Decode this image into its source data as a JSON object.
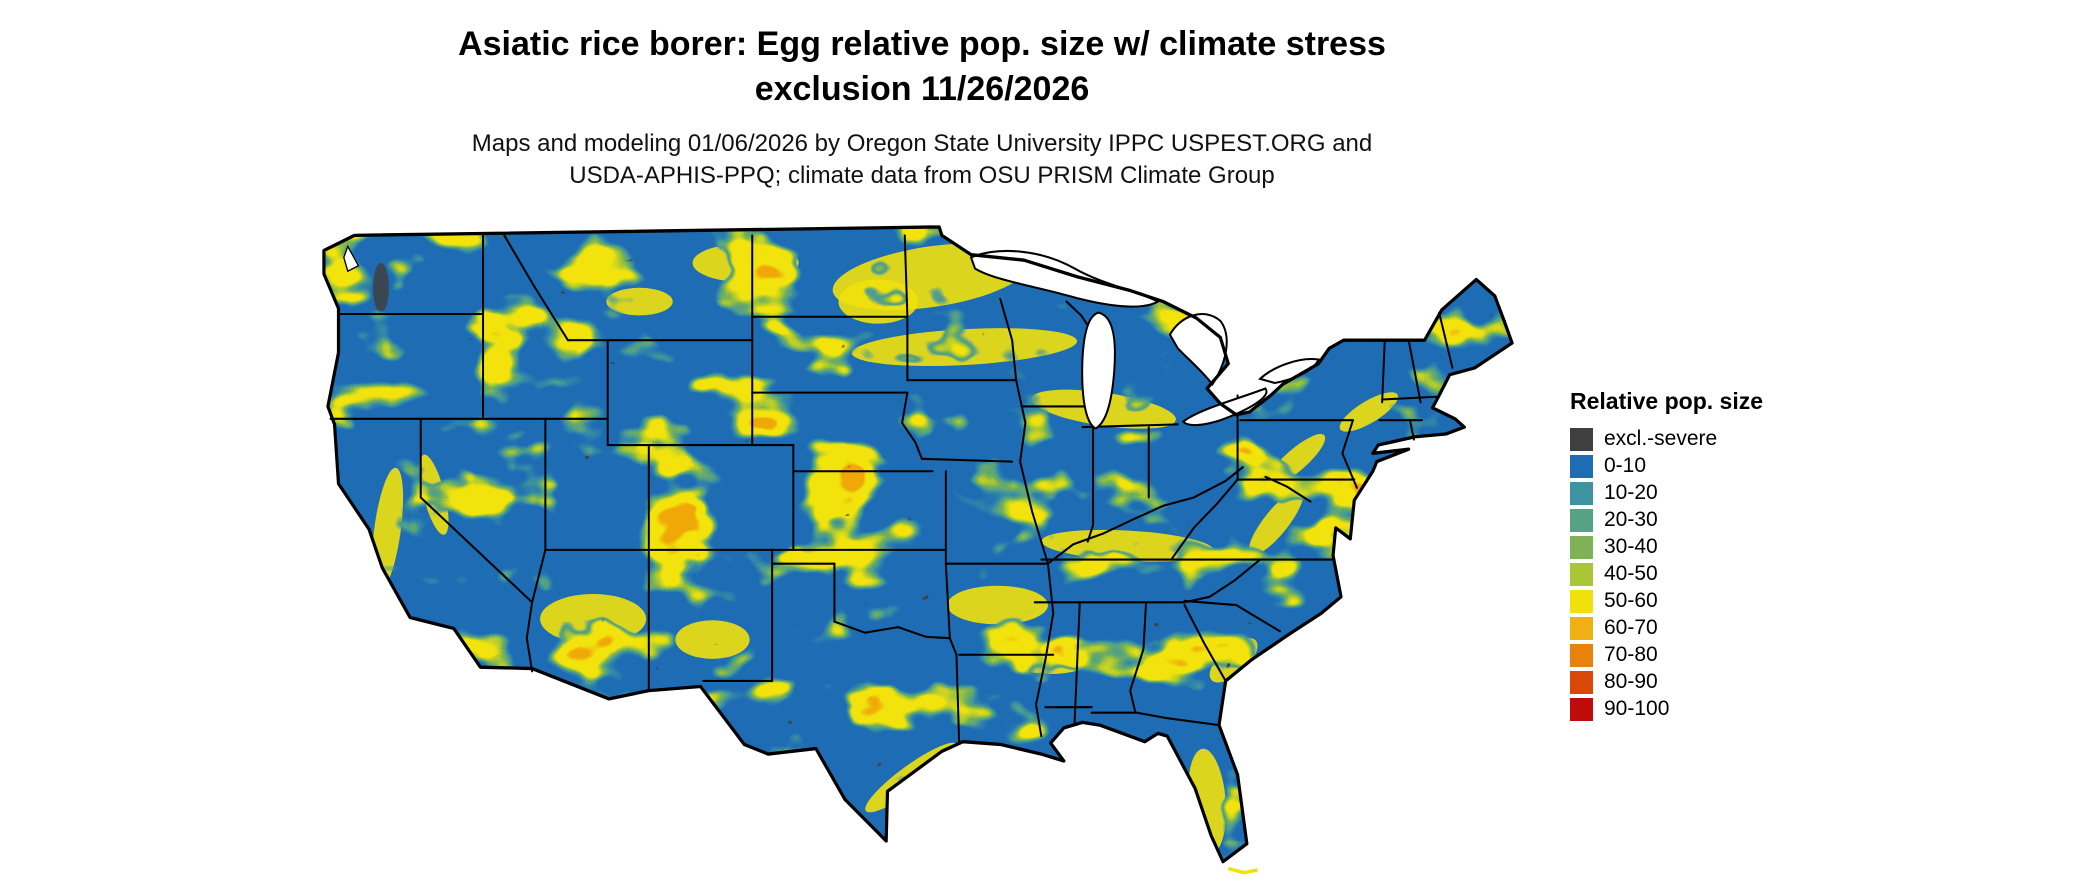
{
  "header": {
    "title_line1": "Asiatic rice borer: Egg relative pop. size w/ climate stress",
    "title_line2": "exclusion 11/26/2026",
    "subtitle_line1": "Maps and modeling 01/06/2026 by Oregon State University IPPC USPEST.ORG and",
    "subtitle_line2": "USDA-APHIS-PPQ; climate data from OSU PRISM Climate Group"
  },
  "legend": {
    "title": "Relative pop. size",
    "items": [
      {
        "label": "excl.-severe",
        "color": "#3f3f3f"
      },
      {
        "label": "0-10",
        "color": "#1e6db4"
      },
      {
        "label": "10-20",
        "color": "#3d93a0"
      },
      {
        "label": "20-30",
        "color": "#55a287"
      },
      {
        "label": "30-40",
        "color": "#7fb254"
      },
      {
        "label": "40-50",
        "color": "#aac637"
      },
      {
        "label": "50-60",
        "color": "#f0e10c"
      },
      {
        "label": "60-70",
        "color": "#eeb012"
      },
      {
        "label": "70-80",
        "color": "#e8820c"
      },
      {
        "label": "80-90",
        "color": "#d94808"
      },
      {
        "label": "90-100",
        "color": "#c00b0b"
      }
    ]
  },
  "map": {
    "region": "Contiguous United States",
    "base_color": "#1e6db4",
    "hotspot_color": "#f0e10c",
    "dominant_classes": [
      "0-10",
      "50-60"
    ]
  }
}
